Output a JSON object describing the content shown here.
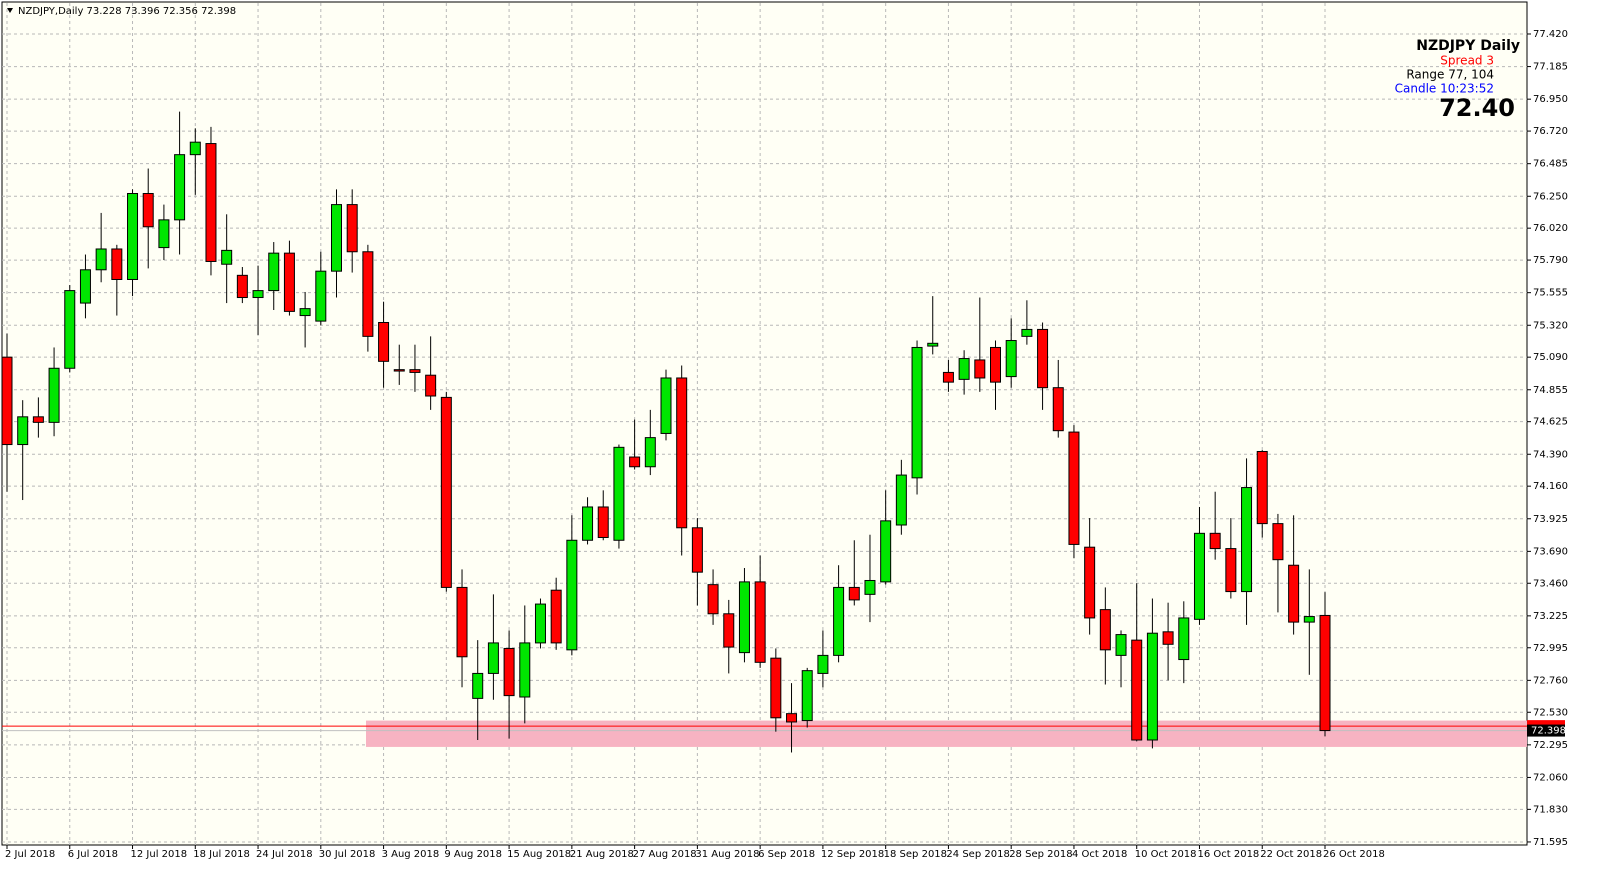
{
  "chart_data": {
    "type": "candlestick",
    "symbol_line": "NZDJPY,Daily  73.228 73.396 72.356 72.398",
    "info_panel": {
      "title": "NZDJPY  Daily",
      "spread": "Spread  3",
      "range": "Range  77, 104",
      "candle": "Candle  10:23:52",
      "price": "72.40"
    },
    "categories": [
      "2 Jul 2018",
      null,
      null,
      null,
      "6 Jul 2018",
      null,
      null,
      null,
      "12 Jul 2018",
      null,
      null,
      null,
      "18 Jul 2018",
      null,
      null,
      null,
      "24 Jul 2018",
      null,
      null,
      null,
      "30 Jul 2018",
      null,
      null,
      null,
      "3 Aug 2018",
      null,
      null,
      null,
      "9 Aug 2018",
      null,
      null,
      null,
      "15 Aug 2018",
      null,
      null,
      null,
      "21 Aug 2018",
      null,
      null,
      null,
      "27 Aug 2018",
      null,
      null,
      null,
      "31 Aug 2018",
      null,
      null,
      null,
      "6 Sep 2018",
      null,
      null,
      null,
      "12 Sep 2018",
      null,
      null,
      null,
      "18 Sep 2018",
      null,
      null,
      null,
      "24 Sep 2018",
      null,
      null,
      null,
      "28 Sep 2018",
      null,
      null,
      null,
      "4 Oct 2018",
      null,
      null,
      null,
      "10 Oct 2018",
      null,
      null,
      null,
      "16 Oct 2018",
      null,
      null,
      null,
      "22 Oct 2018",
      null,
      null,
      null,
      "26 Oct 2018"
    ],
    "open": [
      75.09,
      74.46,
      74.66,
      74.62,
      75.01,
      75.48,
      75.72,
      75.87,
      75.65,
      76.27,
      75.88,
      76.08,
      76.55,
      76.63,
      75.76,
      75.68,
      75.52,
      75.57,
      75.84,
      75.39,
      75.35,
      75.71,
      76.19,
      75.85,
      75.34,
      75.0,
      75.0,
      74.96,
      74.8,
      73.43,
      72.63,
      72.81,
      72.99,
      72.64,
      73.03,
      73.41,
      72.98,
      73.77,
      74.01,
      73.77,
      74.37,
      74.3,
      74.54,
      74.94,
      73.86,
      73.45,
      73.24,
      72.96,
      73.47,
      72.92,
      72.52,
      72.47,
      72.81,
      72.94,
      73.43,
      73.38,
      73.47,
      73.88,
      74.22,
      75.17,
      74.98,
      74.93,
      75.07,
      75.16,
      74.95,
      75.24,
      75.29,
      74.87,
      74.55,
      73.72,
      73.27,
      72.94,
      73.05,
      72.33,
      73.11,
      72.91,
      73.2,
      73.82,
      73.71,
      73.4,
      74.41,
      73.89,
      73.59,
      73.18,
      73.228
    ],
    "high": [
      75.26,
      74.78,
      74.8,
      75.16,
      75.61,
      75.83,
      76.13,
      75.9,
      76.3,
      76.45,
      76.19,
      76.86,
      76.74,
      76.75,
      76.12,
      75.74,
      75.75,
      75.92,
      75.93,
      75.56,
      75.85,
      76.3,
      76.3,
      75.9,
      75.49,
      75.18,
      75.18,
      75.24,
      74.84,
      73.56,
      73.05,
      73.38,
      73.12,
      73.3,
      73.35,
      73.5,
      73.95,
      74.08,
      74.13,
      74.46,
      74.64,
      74.71,
      75.0,
      75.03,
      73.93,
      73.56,
      73.34,
      73.57,
      73.66,
      72.99,
      72.74,
      72.85,
      73.12,
      73.59,
      73.77,
      73.81,
      74.13,
      74.35,
      75.21,
      75.53,
      75.07,
      75.14,
      75.52,
      75.21,
      75.37,
      75.5,
      75.34,
      75.07,
      74.6,
      73.93,
      73.43,
      73.12,
      73.46,
      73.35,
      73.32,
      73.33,
      74.01,
      74.12,
      73.93,
      74.36,
      74.42,
      73.96,
      73.95,
      73.56,
      73.396
    ],
    "low": [
      74.12,
      74.06,
      74.51,
      74.52,
      74.98,
      75.37,
      75.63,
      75.39,
      75.53,
      75.73,
      75.79,
      75.83,
      76.26,
      75.68,
      75.48,
      75.48,
      75.25,
      75.43,
      75.39,
      75.16,
      75.32,
      75.52,
      75.7,
      75.13,
      74.87,
      74.89,
      74.84,
      74.71,
      73.4,
      72.71,
      72.33,
      72.62,
      72.34,
      72.45,
      72.99,
      72.98,
      72.94,
      73.74,
      73.77,
      73.71,
      74.28,
      74.24,
      74.49,
      73.66,
      73.3,
      73.16,
      72.81,
      72.89,
      72.85,
      72.39,
      72.24,
      72.42,
      72.71,
      72.89,
      73.3,
      73.18,
      73.45,
      73.81,
      74.1,
      75.11,
      74.84,
      74.82,
      74.84,
      74.71,
      74.87,
      75.18,
      74.71,
      74.51,
      73.64,
      73.09,
      72.73,
      72.71,
      72.32,
      72.27,
      72.76,
      72.74,
      73.16,
      73.63,
      73.35,
      73.16,
      73.79,
      73.25,
      73.09,
      72.8,
      72.356
    ],
    "close": [
      74.46,
      74.66,
      74.62,
      75.01,
      75.57,
      75.72,
      75.87,
      75.65,
      76.27,
      76.03,
      76.08,
      76.55,
      76.64,
      75.78,
      75.86,
      75.52,
      75.57,
      75.84,
      75.42,
      75.44,
      75.71,
      76.19,
      75.85,
      75.24,
      75.06,
      74.99,
      74.98,
      74.81,
      73.43,
      72.93,
      72.81,
      73.03,
      72.65,
      73.03,
      73.31,
      73.03,
      73.77,
      74.01,
      73.79,
      74.44,
      74.3,
      74.51,
      74.94,
      73.86,
      73.54,
      73.24,
      73.0,
      73.47,
      72.89,
      72.49,
      72.46,
      72.83,
      72.94,
      73.43,
      73.34,
      73.48,
      73.91,
      74.24,
      75.16,
      75.19,
      74.91,
      75.08,
      74.94,
      74.91,
      75.21,
      75.29,
      74.87,
      74.56,
      73.74,
      73.21,
      72.98,
      73.09,
      72.33,
      73.1,
      73.02,
      73.21,
      73.82,
      73.71,
      73.4,
      74.15,
      73.89,
      73.63,
      73.18,
      73.22,
      72.398
    ],
    "up_color": "#00e600",
    "down_color": "#ff0000",
    "zone": [
      72.28,
      72.47
    ],
    "zone_color": "#f7b3c2",
    "ask_line": 72.43,
    "bid": 72.398,
    "ylim": [
      71.573,
      77.665
    ],
    "yticks": [
      71.595,
      {
        "value": 71.83,
        "label": "71.830"
      },
      {
        "value": 72.06,
        "label": "72.060"
      },
      72.295,
      {
        "value": 72.53,
        "label": "72.530"
      },
      {
        "value": 72.76,
        "label": "72.760"
      },
      72.995,
      73.225,
      {
        "value": 73.46,
        "label": "73.460"
      },
      {
        "value": 73.69,
        "label": "73.690"
      },
      73.925,
      {
        "value": 74.16,
        "label": "74.160"
      },
      {
        "value": 74.39,
        "label": "74.390"
      },
      74.625,
      74.855,
      {
        "value": 75.09,
        "label": "75.090"
      },
      {
        "value": 75.32,
        "label": "75.320"
      },
      75.555,
      {
        "value": 75.79,
        "label": "75.790"
      },
      {
        "value": 76.02,
        "label": "76.020"
      },
      {
        "value": 76.25,
        "label": "76.250"
      },
      76.485,
      {
        "value": 76.72,
        "label": "76.720"
      },
      {
        "value": 76.95,
        "label": "76.950"
      },
      77.185,
      {
        "value": 77.42,
        "label": "77.420"
      }
    ],
    "grid": true
  }
}
